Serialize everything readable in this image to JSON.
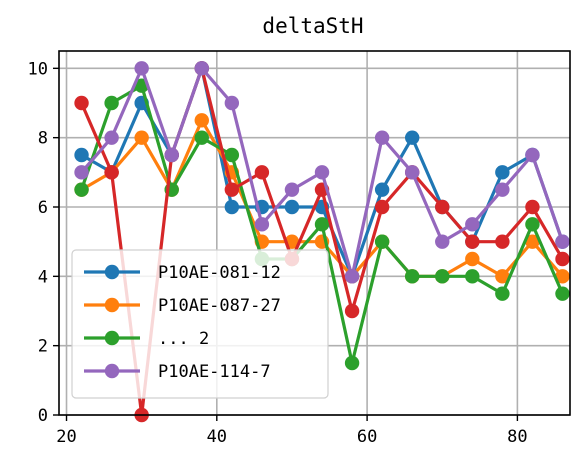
{
  "chart_data": {
    "type": "line",
    "title": "deltaStH",
    "xlabel": "",
    "ylabel": "",
    "xlim": [
      19,
      87
    ],
    "ylim": [
      0,
      10.5
    ],
    "xticks": [
      20,
      40,
      60,
      80
    ],
    "yticks": [
      0,
      2,
      4,
      6,
      8,
      10
    ],
    "grid": true,
    "legend_position": "lower-left",
    "x": [
      22,
      26,
      30,
      34,
      38,
      42,
      46,
      50,
      54,
      58,
      62,
      66,
      70,
      74,
      78,
      82,
      86
    ],
    "series": [
      {
        "name": "P10AE-081-12",
        "color": "#1f77b4",
        "values": [
          7.5,
          7,
          9,
          7.5,
          10,
          6,
          6,
          6,
          6,
          4,
          6.5,
          8,
          6,
          5,
          7,
          7.5,
          5
        ]
      },
      {
        "name": "P10AE-087-27",
        "color": "#ff7f0e",
        "values": [
          6.5,
          7,
          8,
          6.5,
          8.5,
          7,
          5,
          5,
          5,
          4,
          5,
          4,
          4,
          4.5,
          4,
          5,
          4
        ]
      },
      {
        "name": "... 2",
        "color": "#2ca02c",
        "values": [
          6.5,
          9,
          9.5,
          6.5,
          8,
          7.5,
          4.5,
          4.5,
          5.5,
          1.5,
          5,
          4,
          4,
          4,
          3.5,
          5.5,
          3.5
        ]
      },
      {
        "name": "",
        "color": "#d62728",
        "values": [
          9,
          7,
          0,
          7.5,
          10,
          6.5,
          7,
          4.5,
          6.5,
          3,
          6,
          7,
          6,
          5,
          5,
          6,
          4.5
        ]
      },
      {
        "name": "P10AE-114-7",
        "color": "#9467bd",
        "values": [
          7,
          8,
          10,
          7.5,
          10,
          9,
          5.5,
          6.5,
          7,
          4,
          8,
          7,
          5,
          5.5,
          6.5,
          7.5,
          5
        ]
      }
    ],
    "legend": [
      "P10AE-081-12",
      "P10AE-087-27",
      "... 2",
      "P10AE-114-7"
    ]
  }
}
